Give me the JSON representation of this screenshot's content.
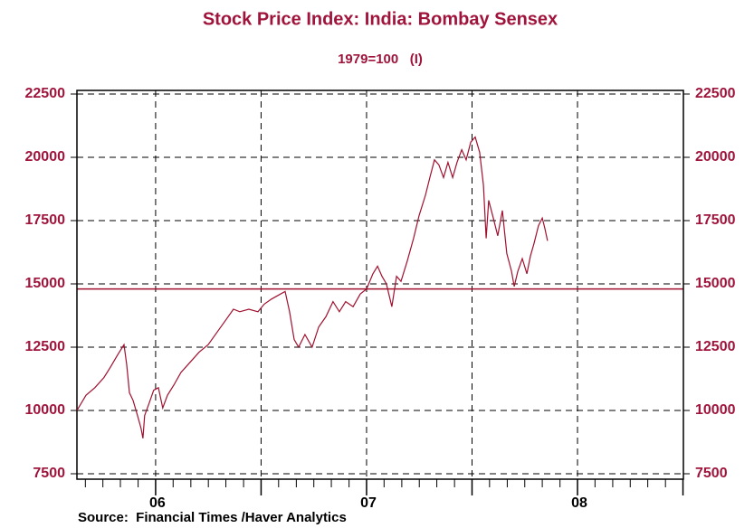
{
  "chart_data": {
    "type": "line",
    "title": "Stock Price Index: India: Bombay Sensex",
    "subtitle": "1979=100   (I)",
    "source": "Source:  Financial Times /Haver Analytics",
    "series": [
      {
        "name": "Bombay Sensex",
        "color": "#a0102e",
        "x": [
          2005.627,
          2005.67,
          2005.712,
          2005.755,
          2005.785,
          2005.82,
          2005.85,
          2005.863,
          2005.876,
          2005.893,
          2005.914,
          2005.931,
          2005.94,
          2005.948,
          2005.97,
          2005.991,
          2006.013,
          2006.034,
          2006.056,
          2006.086,
          2006.12,
          2006.163,
          2006.206,
          2006.249,
          2006.292,
          2006.335,
          2006.369,
          2006.399,
          2006.442,
          2006.485,
          2006.515,
          2006.549,
          2006.592,
          2006.614,
          2006.635,
          2006.657,
          2006.678,
          2006.708,
          2006.742,
          2006.773,
          2006.807,
          2006.841,
          2006.871,
          2006.901,
          2006.936,
          2006.97,
          2007.0,
          2007.03,
          2007.052,
          2007.073,
          2007.094,
          2007.12,
          2007.142,
          2007.163,
          2007.193,
          2007.223,
          2007.249,
          2007.279,
          2007.3,
          2007.322,
          2007.343,
          2007.365,
          2007.386,
          2007.408,
          2007.429,
          2007.451,
          2007.472,
          2007.494,
          2007.515,
          2007.536,
          2007.554,
          2007.567,
          2007.579,
          2007.601,
          2007.622,
          2007.644,
          2007.665,
          2007.687,
          2007.7,
          2007.717,
          2007.738,
          2007.76,
          2007.777,
          2007.794,
          2007.815,
          2007.833,
          2007.845,
          2007.858
        ],
        "values": [
          10000,
          10600,
          10900,
          11300,
          11700,
          12200,
          12600,
          11800,
          10700,
          10400,
          9800,
          9300,
          8900,
          9800,
          10300,
          10800,
          10900,
          10100,
          10600,
          11000,
          11500,
          11900,
          12300,
          12600,
          13100,
          13600,
          14000,
          13900,
          14000,
          13900,
          14200,
          14400,
          14600,
          14700,
          13900,
          12800,
          12500,
          13000,
          12500,
          13300,
          13700,
          14300,
          13900,
          14300,
          14100,
          14600,
          14800,
          15400,
          15700,
          15300,
          15000,
          14100,
          15300,
          15100,
          15900,
          16800,
          17700,
          18500,
          19200,
          19900,
          19700,
          19200,
          19800,
          19200,
          19800,
          20300,
          19900,
          20600,
          20800,
          20200,
          18900,
          16800,
          18300,
          17600,
          16900,
          17900,
          16200,
          15500,
          14900,
          15500,
          16000,
          15400,
          16100,
          16600,
          17300,
          17600,
          17200,
          16700
        ]
      }
    ],
    "reference_line": 14800,
    "xlim": [
      2005.627,
      2008.502
    ],
    "xticks": [
      {
        "value": 2006,
        "label": "06"
      },
      {
        "value": 2007,
        "label": "07"
      },
      {
        "value": 2008,
        "label": "08"
      }
    ],
    "xmidticks": [
      2006.5,
      2007.5,
      2008.5
    ],
    "xminorticks": [
      2005.667,
      2005.75,
      2005.833,
      2005.917,
      2006.083,
      2006.167,
      2006.25,
      2006.333,
      2006.417,
      2006.583,
      2006.667,
      2006.75,
      2006.833,
      2006.917,
      2007.083,
      2007.167,
      2007.25,
      2007.333,
      2007.417,
      2007.583,
      2007.667,
      2007.75,
      2007.833,
      2007.917,
      2008.083,
      2008.167,
      2008.25,
      2008.333,
      2008.417
    ],
    "ylim": [
      7286,
      22643
    ],
    "yticks": [
      7500,
      10000,
      12500,
      15000,
      17500,
      20000,
      22500
    ],
    "grid": true
  }
}
